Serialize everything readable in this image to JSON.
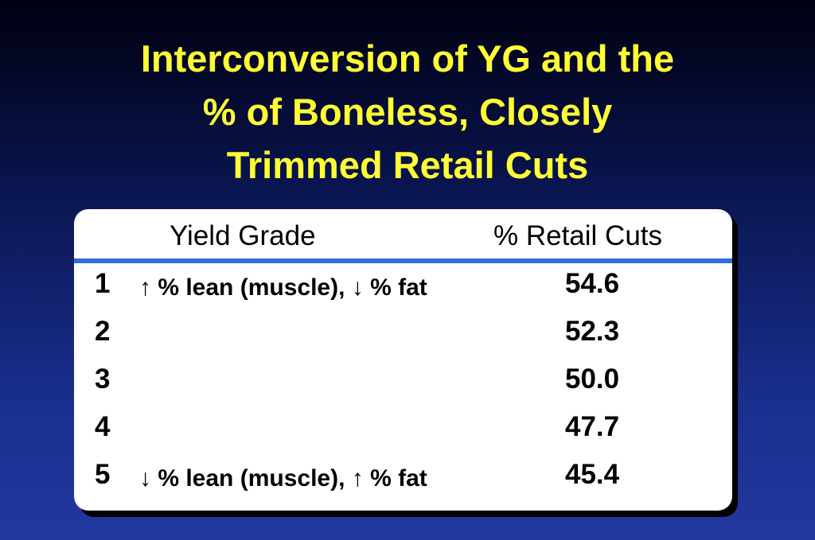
{
  "title": {
    "lines": [
      "Interconversion of YG and the",
      "% of Boneless, Closely",
      "Trimmed Retail Cuts"
    ]
  },
  "table": {
    "header": [
      "Yield Grade",
      "% Retail Cuts"
    ],
    "rows": [
      {
        "grade": "1",
        "note": "↑ % lean (muscle), ↓ % fat",
        "value": "54.6"
      },
      {
        "grade": "2",
        "value": "52.3"
      },
      {
        "grade": "3",
        "value": "50.0"
      },
      {
        "grade": "4",
        "value": "47.7"
      },
      {
        "grade": "5",
        "note": "↓ % lean (muscle), ↑ % fat",
        "value": "45.4"
      }
    ]
  }
}
